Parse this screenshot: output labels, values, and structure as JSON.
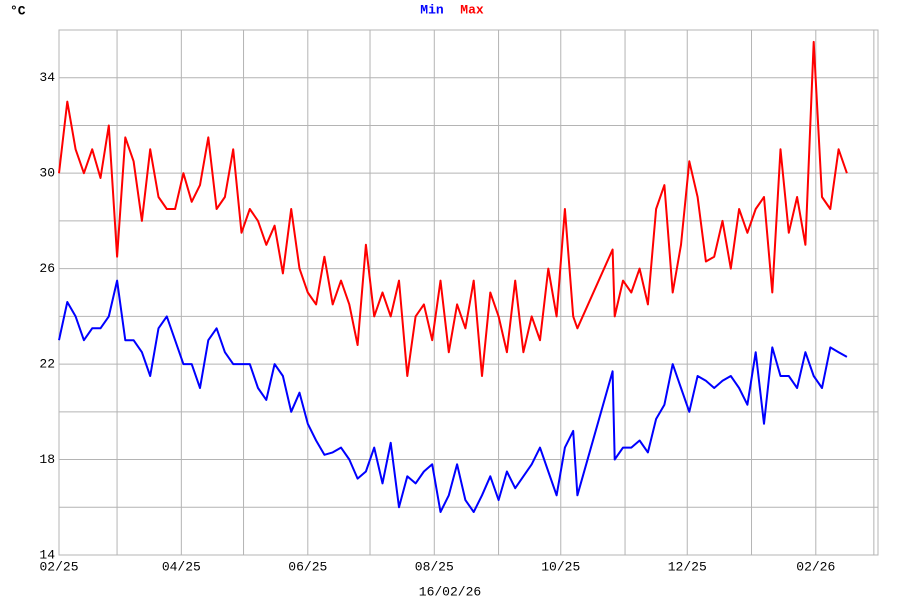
{
  "chart_data": {
    "type": "line",
    "unit_label": "°C",
    "xlabel": "16/02/26",
    "x": [
      0,
      4,
      8,
      12,
      16,
      20,
      24,
      28,
      32,
      36,
      40,
      44,
      48,
      52,
      56,
      60,
      64,
      68,
      72,
      76,
      80,
      84,
      88,
      92,
      96,
      100,
      104,
      108,
      112,
      116,
      120,
      124,
      128,
      132,
      136,
      140,
      144,
      148,
      152,
      156,
      160,
      164,
      168,
      172,
      176,
      180,
      184,
      188,
      192,
      196,
      200,
      204,
      208,
      212,
      216,
      220,
      224,
      228,
      232,
      236,
      240,
      244,
      248,
      250,
      267,
      268,
      272,
      276,
      280,
      284,
      288,
      292,
      296,
      300,
      304,
      308,
      312,
      316,
      320,
      324,
      328,
      332,
      336,
      340,
      344,
      348,
      352,
      356,
      360,
      364,
      368,
      372,
      376,
      380
    ],
    "series": [
      {
        "name": "Min",
        "color": "#0000ff",
        "values": [
          23,
          24.6,
          24,
          23,
          23.5,
          23.5,
          24,
          25.5,
          23,
          23,
          22.5,
          21.5,
          23.5,
          24,
          23,
          22,
          22,
          21,
          23,
          23.5,
          22.5,
          22,
          22,
          22,
          21,
          20.5,
          22,
          21.5,
          20,
          20.8,
          19.5,
          18.8,
          18.2,
          18.3,
          18.5,
          18,
          17.2,
          17.5,
          18.5,
          17,
          18.7,
          16,
          17.3,
          17,
          17.5,
          17.8,
          15.8,
          16.5,
          17.8,
          16.3,
          15.8,
          16.5,
          17.3,
          16.3,
          17.5,
          16.8,
          17.3,
          17.8,
          18.5,
          17.5,
          16.5,
          18.5,
          19.2,
          16.5,
          21.7,
          18,
          18.5,
          18.5,
          18.8,
          18.3,
          19.7,
          20.3,
          22,
          21,
          20,
          21.5,
          21.3,
          21,
          21.3,
          21.5,
          21,
          20.3,
          22.5,
          19.5,
          22.7,
          21.5,
          21.5,
          21,
          22.5,
          21.5,
          21,
          22.7,
          22.5,
          22.3
        ]
      },
      {
        "name": "Max",
        "color": "#ff0000",
        "values": [
          30,
          33,
          31,
          30,
          31,
          29.8,
          32,
          26.5,
          31.5,
          30.5,
          28,
          31,
          29,
          28.5,
          28.5,
          30,
          28.8,
          29.5,
          31.5,
          28.5,
          29,
          31,
          27.5,
          28.5,
          28,
          27,
          27.8,
          25.8,
          28.5,
          26,
          25,
          24.5,
          26.5,
          24.5,
          25.5,
          24.5,
          22.8,
          27,
          24,
          25,
          24,
          25.5,
          21.5,
          24,
          24.5,
          23,
          25.5,
          22.5,
          24.5,
          23.5,
          25.5,
          21.5,
          25,
          24,
          22.5,
          25.5,
          22.5,
          24,
          23,
          26,
          24,
          28.5,
          24,
          23.5,
          26.8,
          24,
          25.5,
          25,
          26,
          24.5,
          28.5,
          29.5,
          25,
          27,
          30.5,
          29,
          26.3,
          26.5,
          28,
          26,
          28.5,
          27.5,
          28.5,
          29,
          25,
          31,
          27.5,
          29,
          27,
          35.5,
          29,
          28.5,
          31,
          30
        ]
      }
    ],
    "xlim": [
      0,
      395
    ],
    "xticks": [
      {
        "value": 0,
        "label": "02/25"
      },
      {
        "value": 59,
        "label": "04/25"
      },
      {
        "value": 120,
        "label": "06/25"
      },
      {
        "value": 181,
        "label": "08/25"
      },
      {
        "value": 242,
        "label": "10/25"
      },
      {
        "value": 303,
        "label": "12/25"
      },
      {
        "value": 365,
        "label": "02/26"
      }
    ],
    "minor_xticks": [
      28,
      89,
      150,
      212,
      273,
      334,
      393
    ],
    "ylim": [
      14,
      36
    ],
    "yticks": [
      14,
      18,
      22,
      26,
      30,
      34
    ],
    "minor_yticks": [
      16,
      20,
      24,
      28,
      32,
      36
    ],
    "grid": true
  }
}
